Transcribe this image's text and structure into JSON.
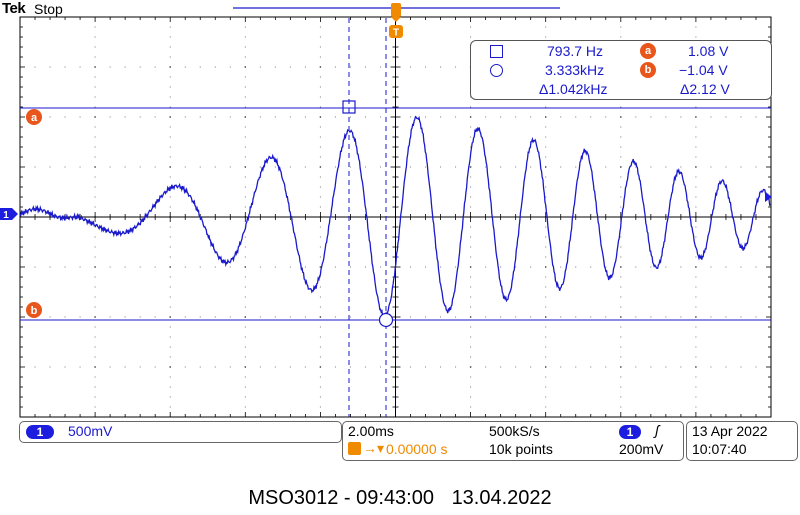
{
  "header": {
    "brand": "Tek",
    "status": "Stop"
  },
  "readout": {
    "cursor1_freq": "793.7 Hz",
    "cursor2_freq": "3.333kHz",
    "delta_freq": "Δ1.042kHz",
    "cursor_a_value": "1.08 V",
    "cursor_b_value": "−1.04 V",
    "delta_voltage": "Δ2.12 V",
    "marker_a": "a",
    "marker_b": "b"
  },
  "channel": {
    "number": "1",
    "scale": "500mV"
  },
  "horizontal": {
    "timebase": "2.00ms",
    "sample_rate": "500kS/s",
    "trigger_offset": "0.00000 s",
    "record_length": "10k points"
  },
  "trigger": {
    "source": "1",
    "slope_symbol": "ʃ",
    "level": "200mV"
  },
  "datetime": {
    "date": "13 Apr  2022",
    "time": "10:07:40"
  },
  "caption": {
    "model_time": "MSO3012 - 09:43:00",
    "date": "13.04.2022"
  },
  "colors": {
    "trace": "#1a1acc",
    "grid": "#000000",
    "cursor_marker": "#e8561c",
    "trigger_marker": "#f08a00"
  }
}
